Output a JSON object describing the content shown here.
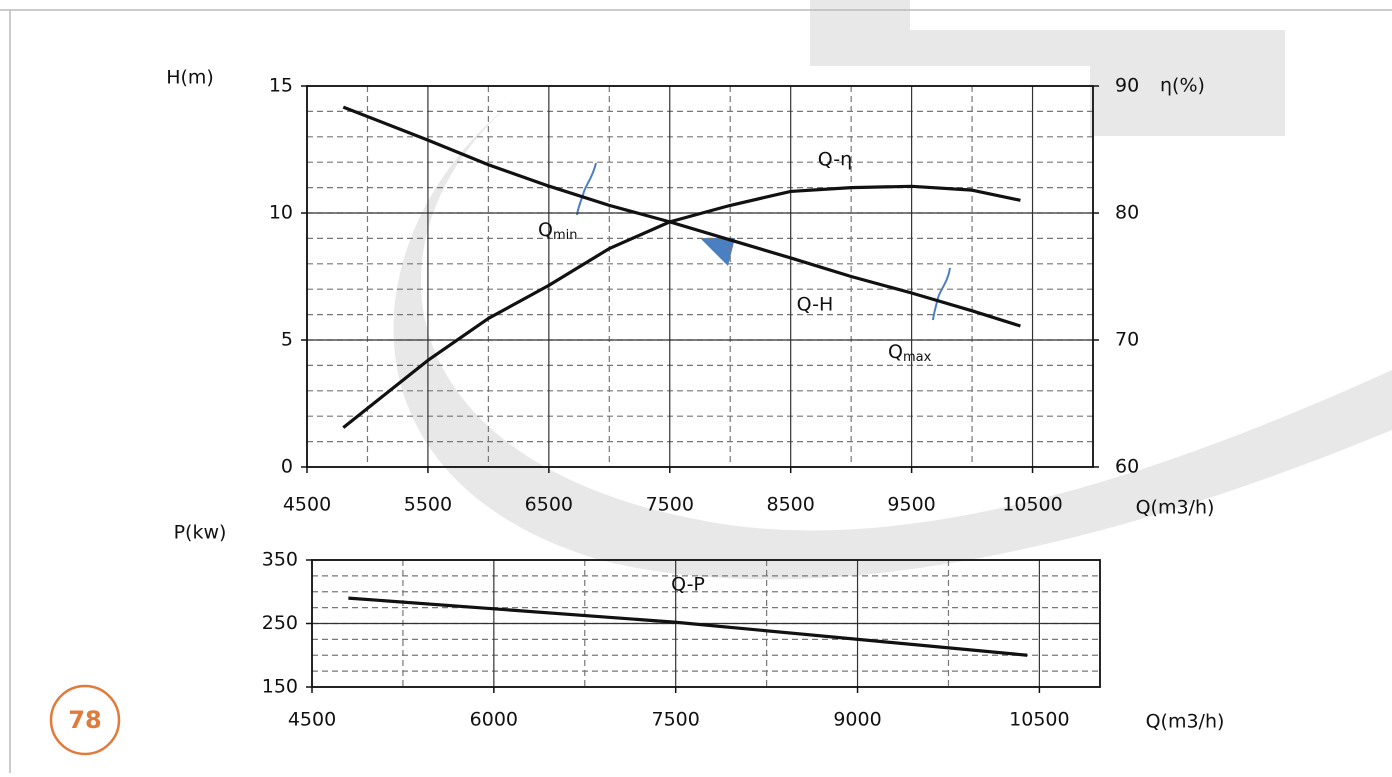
{
  "page_number": "78",
  "chart_data": [
    {
      "type": "line",
      "x_label": "Q(m3/h)",
      "y_label": "H(m)",
      "y2_label": "η(%)",
      "x": [
        4800,
        5500,
        6000,
        6500,
        7000,
        7500,
        8000,
        8500,
        9000,
        9500,
        10000,
        10400
      ],
      "series": [
        {
          "name": "Q-H",
          "color": "#111111",
          "values": [
            14.17,
            12.87,
            11.9,
            11.06,
            10.3,
            9.65,
            8.94,
            8.23,
            7.5,
            6.85,
            6.15,
            5.55
          ]
        },
        {
          "name": "Q-η",
          "color": "#111111",
          "axis": "y2",
          "values": [
            63.1,
            68.4,
            71.7,
            74.3,
            77.2,
            79.3,
            80.6,
            81.7,
            82.0,
            82.1,
            81.8,
            81.0
          ]
        }
      ],
      "annotations": [
        {
          "text": "Q",
          "sub": "min"
        },
        {
          "text": "Q",
          "sub": "max"
        }
      ],
      "xlim": [
        4500,
        11000
      ],
      "xticks": [
        4500,
        5500,
        6500,
        7500,
        8500,
        9500,
        10500
      ],
      "ylim": [
        0,
        15
      ],
      "yticks": [
        0,
        5,
        10,
        15
      ],
      "y2lim": [
        60,
        90
      ],
      "y2ticks": [
        60,
        70,
        80,
        90
      ],
      "grid": true
    },
    {
      "type": "line",
      "x_label": "Q(m3/h)",
      "y_label": "P(kw)",
      "x": [
        4800,
        7500,
        10400
      ],
      "series": [
        {
          "name": "Q-P",
          "color": "#111111",
          "values": [
            290,
            252,
            200
          ]
        }
      ],
      "xlim": [
        4500,
        11000
      ],
      "xticks": [
        4500,
        6000,
        7500,
        9000,
        10500
      ],
      "ylim": [
        150,
        350
      ],
      "yticks": [
        150,
        250,
        350
      ],
      "grid": true
    }
  ]
}
